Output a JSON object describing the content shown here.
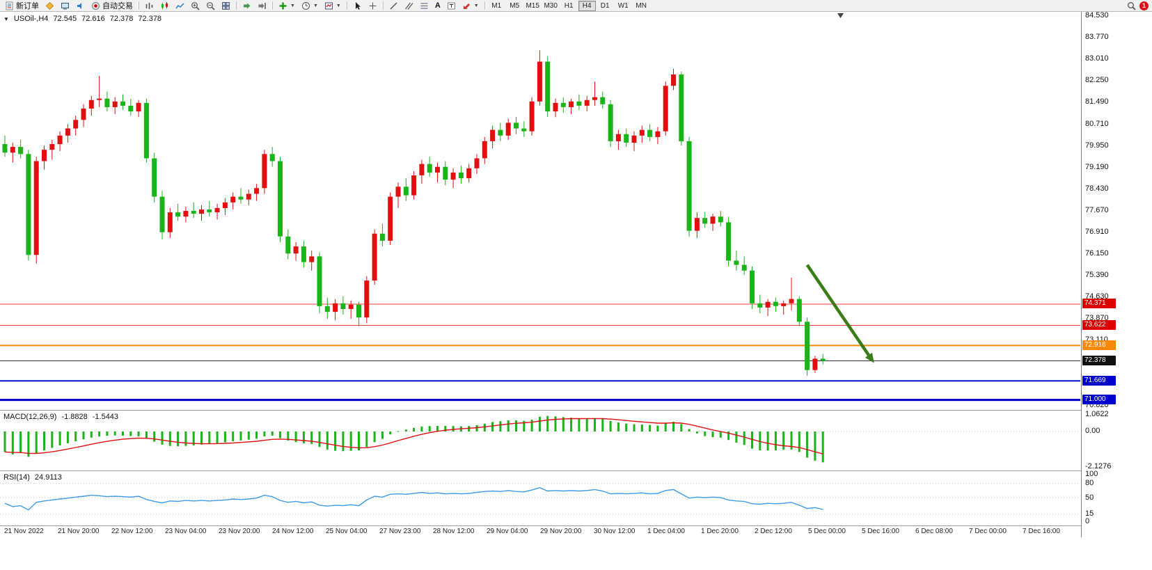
{
  "toolbar": {
    "new_order_label": "新订单",
    "auto_trading_label": "自动交易",
    "text_tool_label": "A",
    "timeframes": [
      "M1",
      "M5",
      "M15",
      "M30",
      "H1",
      "H4",
      "D1",
      "W1",
      "MN"
    ],
    "active_timeframe": "H4",
    "notification_count": "1"
  },
  "chart": {
    "header": {
      "symbol": "USOil-,H4",
      "open": "72.545",
      "high": "72.616",
      "low": "72.378",
      "close": "72.378"
    }
  },
  "price_axis": {
    "labels": [
      "84.530",
      "83.770",
      "83.010",
      "82.250",
      "81.490",
      "80.710",
      "79.950",
      "79.190",
      "78.430",
      "77.670",
      "76.910",
      "76.150",
      "75.390",
      "74.630",
      "73.870",
      "73.110",
      "70.820"
    ],
    "tags": [
      {
        "text": "74.371",
        "bg": "#dd0000"
      },
      {
        "text": "73.622",
        "bg": "#dd0000"
      },
      {
        "text": "72.916",
        "bg": "#ff8a00"
      },
      {
        "text": "72.378",
        "bg": "#111111"
      },
      {
        "text": "71.669",
        "bg": "#0000cc"
      },
      {
        "text": "71.000",
        "bg": "#0000cc"
      }
    ]
  },
  "time_axis": {
    "labels": [
      "21 Nov 2022",
      "21 Nov 20:00",
      "22 Nov 12:00",
      "23 Nov 04:00",
      "23 Nov 20:00",
      "24 Nov 12:00",
      "25 Nov 04:00",
      "27 Nov 23:00",
      "28 Nov 12:00",
      "29 Nov 04:00",
      "29 Nov 20:00",
      "30 Nov 12:00",
      "1 Dec 04:00",
      "1 Dec 20:00",
      "2 Dec 12:00",
      "5 Dec 00:00",
      "5 Dec 16:00",
      "6 Dec 08:00",
      "7 Dec 00:00",
      "7 Dec 16:00"
    ]
  },
  "macd_panel": {
    "name": "MACD(12,26,9)",
    "main_value": "-1.8828",
    "signal_value": "-1.5443",
    "scale": [
      "1.0622",
      "0.00",
      "-2.1276"
    ]
  },
  "rsi_panel": {
    "name": "RSI(14)",
    "value": "24.9113",
    "scale": [
      "100",
      "80",
      "50",
      "15",
      "0"
    ]
  },
  "chart_data": {
    "type": "candlestick",
    "symbol": "USOil",
    "timeframe": "H4",
    "title": "USOil-,H4",
    "ohlc_current": {
      "open": 72.545,
      "high": 72.616,
      "low": 72.378,
      "close": 72.378
    },
    "price_range": [
      70.82,
      84.53
    ],
    "up_color": "#e01010",
    "down_color": "#18b418",
    "candles": [
      [
        80.0,
        80.3,
        79.55,
        79.7
      ],
      [
        79.7,
        80.05,
        79.35,
        79.9
      ],
      [
        79.9,
        80.15,
        79.5,
        79.65
      ],
      [
        79.65,
        79.8,
        75.9,
        76.1
      ],
      [
        76.1,
        79.55,
        75.8,
        79.4
      ],
      [
        79.4,
        79.95,
        79.1,
        79.8
      ],
      [
        79.8,
        80.15,
        79.45,
        80.0
      ],
      [
        80.0,
        80.45,
        79.75,
        80.3
      ],
      [
        80.3,
        80.7,
        80.05,
        80.55
      ],
      [
        80.55,
        81.0,
        80.3,
        80.85
      ],
      [
        80.85,
        81.4,
        80.6,
        81.25
      ],
      [
        81.25,
        81.7,
        81.0,
        81.55
      ],
      [
        81.55,
        82.4,
        81.3,
        81.6
      ],
      [
        81.6,
        81.85,
        81.15,
        81.3
      ],
      [
        81.3,
        81.65,
        81.05,
        81.5
      ],
      [
        81.5,
        81.75,
        81.2,
        81.35
      ],
      [
        81.35,
        81.6,
        81.0,
        81.15
      ],
      [
        81.15,
        81.55,
        80.95,
        81.45
      ],
      [
        81.45,
        81.6,
        79.35,
        79.5
      ],
      [
        79.5,
        79.7,
        77.95,
        78.15
      ],
      [
        78.15,
        78.35,
        76.65,
        76.9
      ],
      [
        76.9,
        77.75,
        76.7,
        77.6
      ],
      [
        77.6,
        77.9,
        77.3,
        77.45
      ],
      [
        77.45,
        77.8,
        77.25,
        77.65
      ],
      [
        77.65,
        77.95,
        77.4,
        77.55
      ],
      [
        77.55,
        77.85,
        77.3,
        77.7
      ],
      [
        77.7,
        78.0,
        77.45,
        77.6
      ],
      [
        77.6,
        77.9,
        77.35,
        77.75
      ],
      [
        77.75,
        78.1,
        77.5,
        77.95
      ],
      [
        77.95,
        78.3,
        77.7,
        78.15
      ],
      [
        78.15,
        78.45,
        77.9,
        78.05
      ],
      [
        78.05,
        78.4,
        77.85,
        78.25
      ],
      [
        78.25,
        78.6,
        78.0,
        78.45
      ],
      [
        78.45,
        79.8,
        78.25,
        79.65
      ],
      [
        79.65,
        79.9,
        79.2,
        79.4
      ],
      [
        79.4,
        79.55,
        76.55,
        76.75
      ],
      [
        76.75,
        77.0,
        75.95,
        76.15
      ],
      [
        76.15,
        76.55,
        75.9,
        76.4
      ],
      [
        76.4,
        76.6,
        75.65,
        75.85
      ],
      [
        75.85,
        76.25,
        75.55,
        76.05
      ],
      [
        76.05,
        76.2,
        74.05,
        74.3
      ],
      [
        74.3,
        74.6,
        73.85,
        74.1
      ],
      [
        74.1,
        74.55,
        73.8,
        74.4
      ],
      [
        74.4,
        74.65,
        74.0,
        74.2
      ],
      [
        74.2,
        74.5,
        73.85,
        74.35
      ],
      [
        74.35,
        74.45,
        73.6,
        73.9
      ],
      [
        73.9,
        75.35,
        73.7,
        75.2
      ],
      [
        75.2,
        77.0,
        75.05,
        76.85
      ],
      [
        76.85,
        77.2,
        76.4,
        76.6
      ],
      [
        76.6,
        78.3,
        76.45,
        78.15
      ],
      [
        78.15,
        78.65,
        77.75,
        78.5
      ],
      [
        78.5,
        78.8,
        78.0,
        78.2
      ],
      [
        78.2,
        79.05,
        78.05,
        78.9
      ],
      [
        78.9,
        79.45,
        78.6,
        79.3
      ],
      [
        79.3,
        79.55,
        78.85,
        79.0
      ],
      [
        79.0,
        79.35,
        78.65,
        79.2
      ],
      [
        79.2,
        79.4,
        78.55,
        78.75
      ],
      [
        78.75,
        79.15,
        78.45,
        79.0
      ],
      [
        79.0,
        79.25,
        78.6,
        78.8
      ],
      [
        78.8,
        79.3,
        78.65,
        79.15
      ],
      [
        79.15,
        79.65,
        78.95,
        79.5
      ],
      [
        79.5,
        80.25,
        79.3,
        80.1
      ],
      [
        80.1,
        80.65,
        79.85,
        80.5
      ],
      [
        80.5,
        80.75,
        80.1,
        80.3
      ],
      [
        80.3,
        80.9,
        80.15,
        80.75
      ],
      [
        80.75,
        80.95,
        80.35,
        80.55
      ],
      [
        80.55,
        80.8,
        80.25,
        80.45
      ],
      [
        80.45,
        81.65,
        80.3,
        81.5
      ],
      [
        81.5,
        83.3,
        81.35,
        82.9
      ],
      [
        82.9,
        83.1,
        80.95,
        81.15
      ],
      [
        81.15,
        81.6,
        80.95,
        81.45
      ],
      [
        81.45,
        81.65,
        81.1,
        81.3
      ],
      [
        81.3,
        81.6,
        81.05,
        81.5
      ],
      [
        81.5,
        81.75,
        81.2,
        81.35
      ],
      [
        81.35,
        81.7,
        81.15,
        81.55
      ],
      [
        81.55,
        82.2,
        81.35,
        81.65
      ],
      [
        81.65,
        81.85,
        81.25,
        81.4
      ],
      [
        81.4,
        81.55,
        79.9,
        80.1
      ],
      [
        80.1,
        80.5,
        79.8,
        80.35
      ],
      [
        80.35,
        80.55,
        79.9,
        80.05
      ],
      [
        80.05,
        80.45,
        79.75,
        80.3
      ],
      [
        80.3,
        80.65,
        80.05,
        80.5
      ],
      [
        80.5,
        80.7,
        80.1,
        80.25
      ],
      [
        80.25,
        80.6,
        80.0,
        80.45
      ],
      [
        80.45,
        82.2,
        80.3,
        82.05
      ],
      [
        82.05,
        82.65,
        81.9,
        82.45
      ],
      [
        82.45,
        82.55,
        79.95,
        80.1
      ],
      [
        80.1,
        80.25,
        76.75,
        76.95
      ],
      [
        76.95,
        77.6,
        76.7,
        77.4
      ],
      [
        77.4,
        77.6,
        77.05,
        77.2
      ],
      [
        77.2,
        77.55,
        76.95,
        77.45
      ],
      [
        77.45,
        77.65,
        77.1,
        77.25
      ],
      [
        77.25,
        77.45,
        75.7,
        75.9
      ],
      [
        75.9,
        76.25,
        75.55,
        75.75
      ],
      [
        75.75,
        76.05,
        75.4,
        75.55
      ],
      [
        75.55,
        75.7,
        74.2,
        74.4
      ],
      [
        74.4,
        74.7,
        74.05,
        74.25
      ],
      [
        74.25,
        74.55,
        73.95,
        74.45
      ],
      [
        74.45,
        74.6,
        74.1,
        74.3
      ],
      [
        74.3,
        74.5,
        74.0,
        74.4
      ],
      [
        74.4,
        75.3,
        74.15,
        74.55
      ],
      [
        74.55,
        74.65,
        73.6,
        73.75
      ],
      [
        73.75,
        73.9,
        71.85,
        72.05
      ],
      [
        72.05,
        72.55,
        71.95,
        72.45
      ],
      [
        72.45,
        72.616,
        72.25,
        72.378
      ]
    ],
    "hlines": [
      {
        "price": 74.371,
        "color": "#f03c3c",
        "width": 1
      },
      {
        "price": 73.622,
        "color": "#f03c3c",
        "width": 1
      },
      {
        "price": 72.916,
        "color": "#ff8a00",
        "width": 2
      },
      {
        "price": 72.378,
        "color": "#222222",
        "width": 1
      },
      {
        "price": 71.669,
        "color": "#0000cc",
        "width": 2
      },
      {
        "price": 71.0,
        "color": "#0000cc",
        "width": 3
      }
    ],
    "arrow_annotation": {
      "from_bar": 102,
      "from_price": 75.75,
      "to_bar": 110.5,
      "to_price": 72.3,
      "color": "#3a7d17"
    },
    "indicators": [
      {
        "type": "macd",
        "params": "12,26,9",
        "range": [
          -2.1276,
          1.0622
        ],
        "histogram_color": "#18b418",
        "signal_color": "#e01010",
        "histogram": [
          -1.25,
          -1.4,
          -1.3,
          -1.55,
          -1.35,
          -1.15,
          -1.0,
          -0.85,
          -0.72,
          -0.6,
          -0.48,
          -0.38,
          -0.3,
          -0.26,
          -0.24,
          -0.25,
          -0.28,
          -0.3,
          -0.45,
          -0.62,
          -0.8,
          -0.88,
          -0.9,
          -0.88,
          -0.85,
          -0.8,
          -0.76,
          -0.72,
          -0.66,
          -0.6,
          -0.55,
          -0.5,
          -0.44,
          -0.3,
          -0.25,
          -0.4,
          -0.55,
          -0.65,
          -0.72,
          -0.76,
          -0.95,
          -1.1,
          -1.18,
          -1.2,
          -1.18,
          -1.15,
          -0.95,
          -0.65,
          -0.45,
          -0.18,
          0.02,
          0.12,
          0.22,
          0.3,
          0.33,
          0.34,
          0.34,
          0.33,
          0.32,
          0.33,
          0.38,
          0.48,
          0.58,
          0.63,
          0.68,
          0.68,
          0.65,
          0.72,
          0.9,
          0.95,
          0.92,
          0.88,
          0.84,
          0.8,
          0.78,
          0.8,
          0.77,
          0.65,
          0.55,
          0.48,
          0.44,
          0.43,
          0.4,
          0.36,
          0.5,
          0.6,
          0.45,
          0.15,
          -0.12,
          -0.28,
          -0.35,
          -0.38,
          -0.52,
          -0.68,
          -0.82,
          -1.05,
          -1.15,
          -1.16,
          -1.15,
          -1.12,
          -1.1,
          -1.25,
          -1.6,
          -1.78,
          -1.8828
        ]
      },
      {
        "type": "rsi",
        "params": "14",
        "range": [
          0,
          100
        ],
        "levels": [
          80,
          50,
          15
        ],
        "line_color": "#3d9be9",
        "values": [
          38,
          31,
          33,
          24,
          40,
          43,
          45,
          47,
          49,
          51,
          53,
          55,
          54,
          52,
          53,
          52,
          51,
          53,
          46,
          42,
          39,
          43,
          42,
          44,
          43,
          44,
          43,
          44,
          45,
          47,
          46,
          47,
          49,
          55,
          52,
          44,
          40,
          42,
          39,
          41,
          34,
          32,
          34,
          33,
          35,
          33,
          45,
          53,
          51,
          57,
          58,
          57,
          59,
          61,
          59,
          60,
          58,
          59,
          58,
          59,
          61,
          63,
          64,
          63,
          65,
          63,
          62,
          66,
          71,
          64,
          65,
          64,
          65,
          64,
          65,
          67,
          64,
          58,
          59,
          58,
          59,
          60,
          58,
          59,
          65,
          67,
          58,
          49,
          51,
          50,
          51,
          50,
          45,
          43,
          42,
          37,
          36,
          38,
          37,
          38,
          40,
          34,
          27,
          29,
          25
        ]
      }
    ]
  }
}
